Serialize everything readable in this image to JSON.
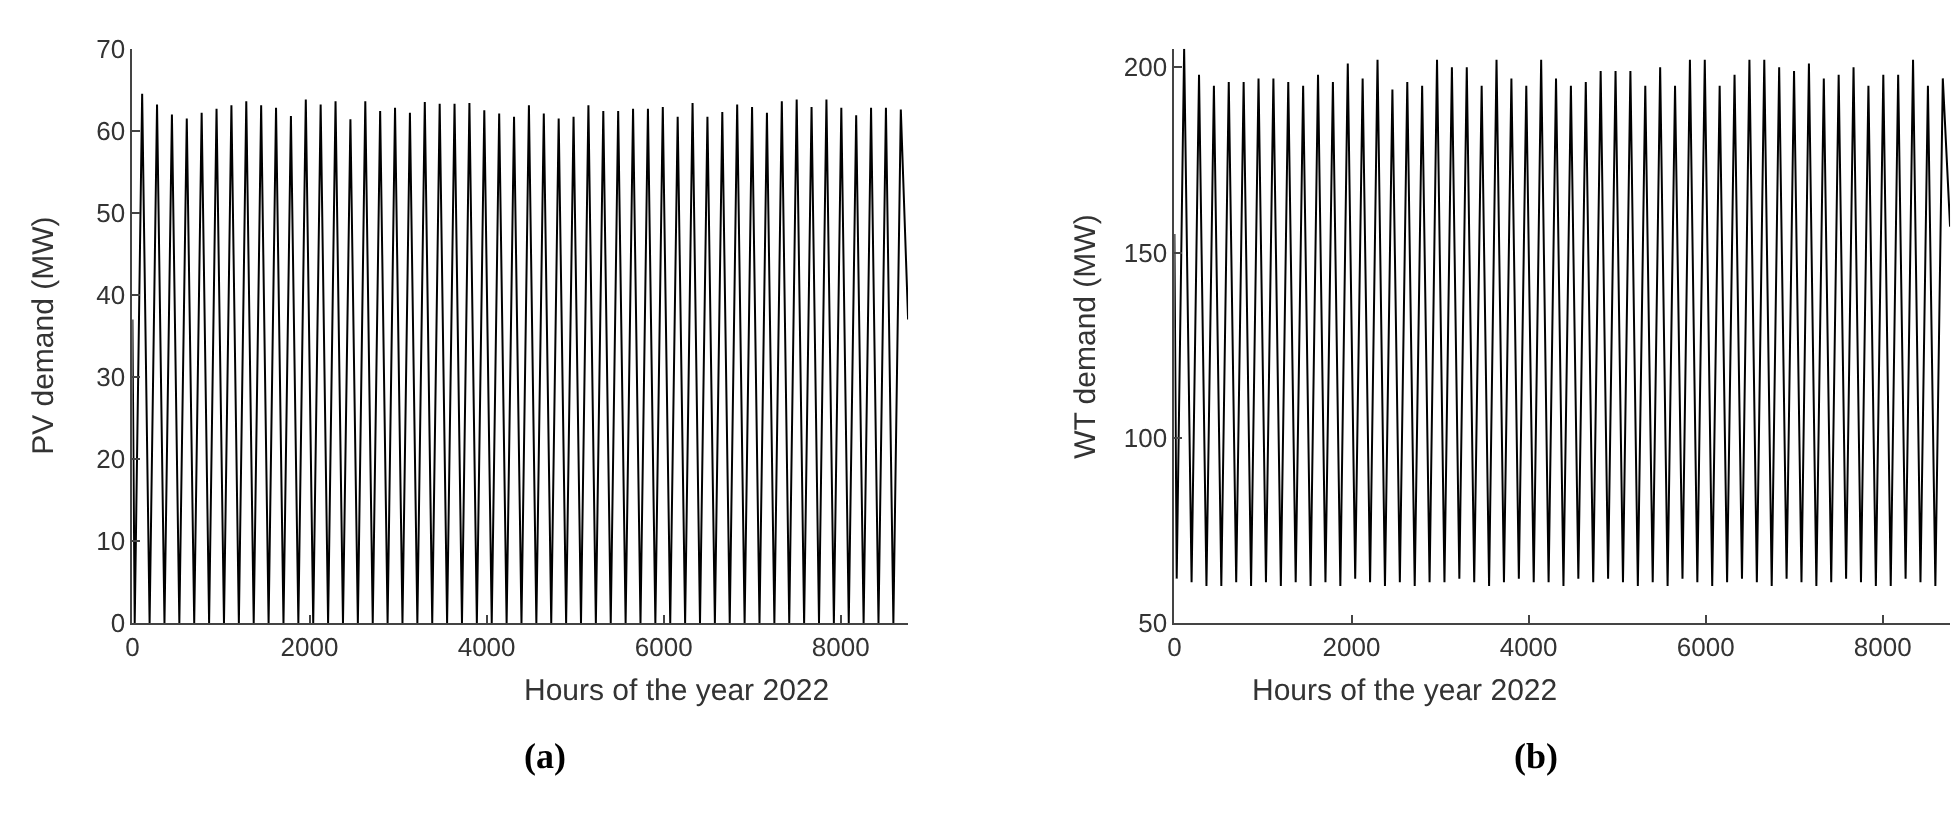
{
  "chart_data": [
    {
      "type": "line",
      "xlabel": "Hours of the year 2022",
      "ylabel": "PV demand (MW)",
      "annotations": [
        "(a)"
      ],
      "x": [
        0,
        26,
        110,
        194,
        278,
        362,
        446,
        530,
        614,
        698,
        782,
        866,
        950,
        1034,
        1118,
        1202,
        1286,
        1370,
        1454,
        1538,
        1622,
        1706,
        1790,
        1874,
        1958,
        2042,
        2126,
        2210,
        2294,
        2378,
        2462,
        2546,
        2630,
        2714,
        2798,
        2882,
        2966,
        3050,
        3134,
        3218,
        3302,
        3386,
        3470,
        3554,
        3638,
        3722,
        3806,
        3890,
        3974,
        4058,
        4142,
        4226,
        4310,
        4394,
        4478,
        4562,
        4646,
        4730,
        4814,
        4898,
        4982,
        5066,
        5150,
        5234,
        5318,
        5402,
        5486,
        5570,
        5654,
        5738,
        5822,
        5906,
        5990,
        6074,
        6158,
        6242,
        6326,
        6410,
        6494,
        6578,
        6662,
        6746,
        6830,
        6914,
        6998,
        7082,
        7166,
        7250,
        7334,
        7418,
        7502,
        7586,
        7670,
        7754,
        7838,
        7922,
        8006,
        8090,
        8174,
        8258,
        8342,
        8426,
        8510,
        8594,
        8678,
        8760
      ],
      "series": [
        {
          "color": "#000000",
          "values": [
            37,
            0,
            64.5,
            0,
            63.2,
            0,
            62,
            0,
            61.5,
            0,
            62.2,
            0,
            62.7,
            0,
            63.1,
            0,
            63.6,
            0,
            63.1,
            0,
            62.8,
            0,
            61.8,
            0,
            63.8,
            0,
            63.2,
            0,
            63.6,
            0,
            61.4,
            0,
            63.6,
            0,
            62.4,
            0,
            62.8,
            0,
            62.2,
            0,
            63.5,
            0,
            63.3,
            0,
            63.3,
            0,
            63.4,
            0,
            62.5,
            0,
            62.1,
            0,
            61.7,
            0,
            63.1,
            0,
            62.1,
            0,
            61.5,
            0,
            61.7,
            0,
            63.1,
            0,
            62.4,
            0,
            62.4,
            0,
            62.7,
            0,
            62.7,
            0,
            62.9,
            0,
            61.7,
            0,
            63.4,
            0,
            61.7,
            0,
            62.3,
            0,
            63.2,
            0,
            62.9,
            0,
            62.2,
            0,
            63.6,
            0,
            63.8,
            0,
            62.9,
            0,
            63.8,
            0,
            62.8,
            0,
            61.9,
            0,
            62.8,
            0,
            62.8,
            0,
            62.6,
            37
          ]
        }
      ],
      "xlim": [
        0,
        8760
      ],
      "xticks": [
        0,
        2000,
        4000,
        6000,
        8000
      ],
      "ylim": [
        0,
        70
      ],
      "yticks": [
        0,
        10,
        20,
        30,
        40,
        50,
        60,
        70
      ]
    },
    {
      "type": "line",
      "xlabel": "Hours of the year 2022",
      "ylabel": "WT demand (MW)",
      "annotations": [
        "(b)"
      ],
      "x": [
        0,
        26,
        110,
        194,
        278,
        362,
        446,
        530,
        614,
        698,
        782,
        866,
        950,
        1034,
        1118,
        1202,
        1286,
        1370,
        1454,
        1538,
        1622,
        1706,
        1790,
        1874,
        1958,
        2042,
        2126,
        2210,
        2294,
        2378,
        2462,
        2546,
        2630,
        2714,
        2798,
        2882,
        2966,
        3050,
        3134,
        3218,
        3302,
        3386,
        3470,
        3554,
        3638,
        3722,
        3806,
        3890,
        3974,
        4058,
        4142,
        4226,
        4310,
        4394,
        4478,
        4562,
        4646,
        4730,
        4814,
        4898,
        4982,
        5066,
        5150,
        5234,
        5318,
        5402,
        5486,
        5570,
        5654,
        5738,
        5822,
        5906,
        5990,
        6074,
        6158,
        6242,
        6326,
        6410,
        6494,
        6578,
        6662,
        6746,
        6830,
        6914,
        6998,
        7082,
        7166,
        7250,
        7334,
        7418,
        7502,
        7586,
        7670,
        7754,
        7838,
        7922,
        8006,
        8090,
        8174,
        8258,
        8342,
        8426,
        8510,
        8594,
        8678,
        8760
      ],
      "series": [
        {
          "color": "#000000",
          "values": [
            155,
            62,
            205,
            61,
            198,
            60,
            195,
            60,
            196,
            61,
            196,
            60,
            197,
            61,
            197,
            60,
            196,
            61,
            195,
            60,
            198,
            61,
            196,
            60,
            201,
            62,
            197,
            61,
            202,
            60,
            194,
            61,
            196,
            60,
            195,
            61,
            202,
            61,
            200,
            62,
            200,
            61,
            195,
            60,
            202,
            61,
            197,
            62,
            195,
            61,
            202,
            61,
            197,
            60,
            195,
            62,
            196,
            61,
            199,
            62,
            199,
            61,
            199,
            60,
            195,
            61,
            200,
            60,
            195,
            62,
            202,
            61,
            202,
            60,
            195,
            61,
            198,
            62,
            202,
            61,
            202,
            60,
            200,
            62,
            199,
            61,
            201,
            60,
            197,
            61,
            198,
            62,
            200,
            61,
            195,
            60,
            198,
            60,
            198,
            62,
            202,
            61,
            195,
            60,
            197,
            157
          ]
        }
      ],
      "xlim": [
        0,
        8760
      ],
      "xticks": [
        0,
        2000,
        4000,
        6000,
        8000
      ],
      "ylim": [
        50,
        205
      ],
      "yticks": [
        50,
        100,
        150,
        200
      ]
    }
  ]
}
